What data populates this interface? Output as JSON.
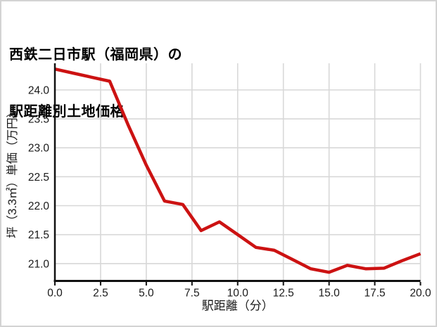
{
  "title": {
    "line1": "西鉄二日市駅（福岡県）の",
    "line2": "駅距離別土地価格"
  },
  "chart_data": {
    "type": "line",
    "title": "西鉄二日市駅（福岡県）の駅距離別土地価格",
    "xlabel": "駅距離（分）",
    "ylabel": "坪（3.3㎡）単価（万円）",
    "x": [
      0,
      1,
      2,
      3,
      4,
      5,
      6,
      7,
      8,
      9,
      10,
      11,
      12,
      13,
      14,
      15,
      16,
      17,
      18,
      19,
      20
    ],
    "y": [
      24.36,
      24.29,
      24.22,
      24.15,
      23.4,
      22.7,
      22.08,
      22.02,
      21.57,
      21.72,
      21.5,
      21.28,
      21.23,
      21.07,
      20.91,
      20.85,
      20.97,
      20.91,
      20.92,
      21.05,
      21.17
    ],
    "xlim": [
      0,
      20
    ],
    "ylim": [
      20.7,
      24.46
    ],
    "xticks": [
      0,
      2.5,
      5,
      7.5,
      10,
      12.5,
      15,
      17.5,
      20
    ],
    "xtick_labels": [
      "0.0",
      "2.5",
      "5.0",
      "7.5",
      "10.0",
      "12.5",
      "15.0",
      "17.5",
      "20.0"
    ],
    "yticks": [
      21.0,
      21.5,
      22.0,
      22.5,
      23.0,
      23.5,
      24.0
    ],
    "ytick_labels": [
      "21.0",
      "21.5",
      "22.0",
      "22.5",
      "23.0",
      "23.5",
      "24.0"
    ],
    "grid": true,
    "legend": false,
    "colors": {
      "line": "#cc1212",
      "grid": "#d8d8d8",
      "axis": "#111111",
      "text": "#1a1a1a"
    }
  }
}
